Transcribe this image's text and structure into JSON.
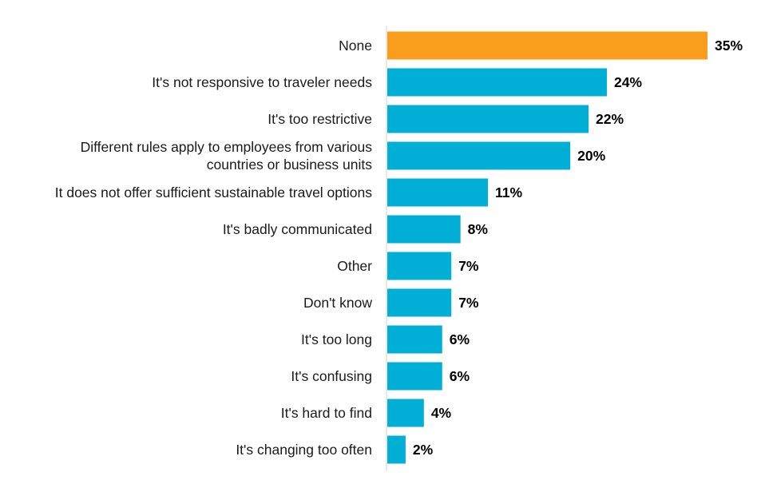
{
  "chart_data": {
    "type": "bar",
    "orientation": "horizontal",
    "title": "",
    "xlabel": "",
    "ylabel": "",
    "xlim": [
      0,
      35
    ],
    "grid": false,
    "legend": "none",
    "value_suffix": "%",
    "categories": [
      [
        "None"
      ],
      [
        "It's not responsive to traveler needs"
      ],
      [
        "It's too restrictive"
      ],
      [
        "Different rules apply to employees from various",
        "countries or business units"
      ],
      [
        "It does not offer sufficient sustainable travel options"
      ],
      [
        "It's badly communicated"
      ],
      [
        "Other"
      ],
      [
        "Don't know"
      ],
      [
        "It's too long"
      ],
      [
        "It's confusing"
      ],
      [
        "It's hard to find"
      ],
      [
        "It's changing too often"
      ]
    ],
    "values": [
      35,
      24,
      22,
      20,
      11,
      8,
      7,
      7,
      6,
      6,
      4,
      2
    ],
    "colors": {
      "highlight": "#F99D1C",
      "default": "#00AED6",
      "axis": "#d0d0d0"
    },
    "highlight_index": 0
  }
}
